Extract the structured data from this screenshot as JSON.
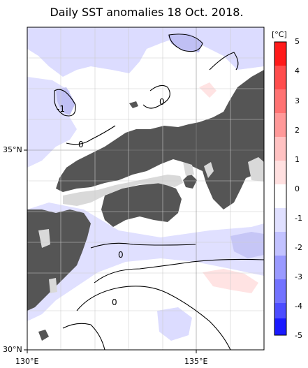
{
  "title": "Daily SST anomalies 18 Oct. 2018.",
  "axes": {
    "lat_labels": [
      {
        "text": "35°N",
        "value": 35
      },
      {
        "text": "30°N",
        "value": 30
      }
    ],
    "lon_labels": [
      {
        "text": "130°E",
        "value": 130
      },
      {
        "text": "135°E",
        "value": 135
      }
    ]
  },
  "map_extent": {
    "lon_min": 130,
    "lon_max": 137,
    "lat_min": 30,
    "lat_max": 37
  },
  "colorbar": {
    "unit": "[°C]",
    "ticks": [
      "5",
      "4",
      "3",
      "2",
      "1",
      "0",
      "-1",
      "-2",
      "-3",
      "-4",
      "-5"
    ],
    "colors_top_to_bottom": [
      "#ff1a1a",
      "#ff4d4d",
      "#ff7373",
      "#ff9999",
      "#ffc2c2",
      "#ffe0e0",
      "#ffffff",
      "#e0e0ff",
      "#c2c2ff",
      "#9a9aff",
      "#7373ff",
      "#4d4dff",
      "#1a1aff"
    ]
  },
  "contour_labels": [
    {
      "text": "0",
      "lon": 133.7,
      "lat": 36.4
    },
    {
      "text": "-1",
      "lon": 130.8,
      "lat": 36.2
    },
    {
      "text": "0",
      "lon": 131.4,
      "lat": 35.3
    },
    {
      "text": "0",
      "lon": 132.2,
      "lat": 32.7
    },
    {
      "text": "0",
      "lon": 132.0,
      "lat": 31.4
    }
  ],
  "colors": {
    "land": "#555555",
    "lake_inland_sea_mask": "#d9d9d9",
    "cold_anomaly": "#dcdcff",
    "colder_anomaly": "#c0c0f4",
    "warm_anomaly": "#ffe3e3",
    "grid": "#888888",
    "contour": "#000000"
  }
}
